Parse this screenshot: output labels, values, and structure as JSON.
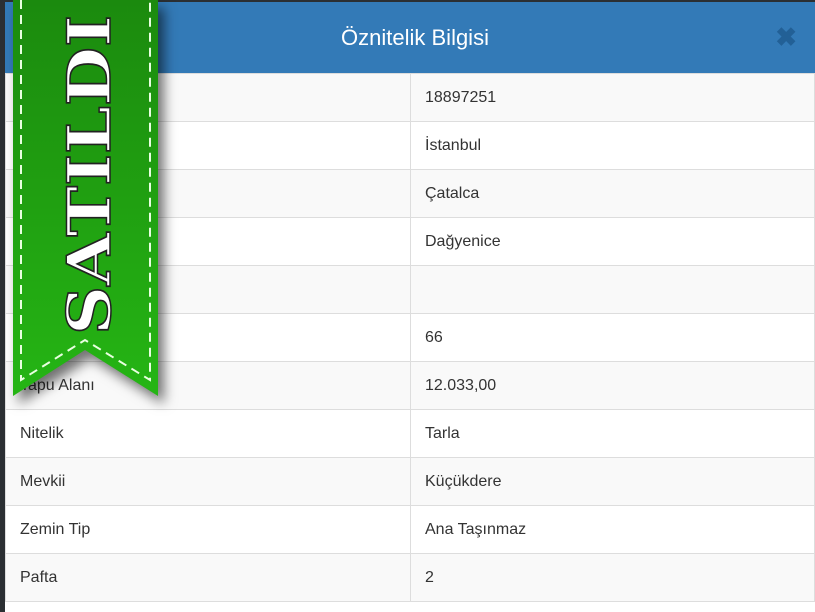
{
  "modal": {
    "title": "Öznitelik Bilgisi",
    "close_icon": "close-icon"
  },
  "ribbon": {
    "text": "SATILDI",
    "color": "#22a812"
  },
  "rows": [
    {
      "label": "",
      "value": "18897251"
    },
    {
      "label": "",
      "value": "İstanbul"
    },
    {
      "label": "",
      "value": "Çatalca"
    },
    {
      "label": "",
      "value": "Dağyenice"
    },
    {
      "label": "",
      "value": ""
    },
    {
      "label": "",
      "value": "66"
    },
    {
      "label": "Tapu Alanı",
      "value": "12.033,00"
    },
    {
      "label": "Nitelik",
      "value": "Tarla"
    },
    {
      "label": "Mevkii",
      "value": "Küçükdere"
    },
    {
      "label": "Zemin Tip",
      "value": "Ana Taşınmaz"
    },
    {
      "label": "Pafta",
      "value": "2"
    }
  ]
}
